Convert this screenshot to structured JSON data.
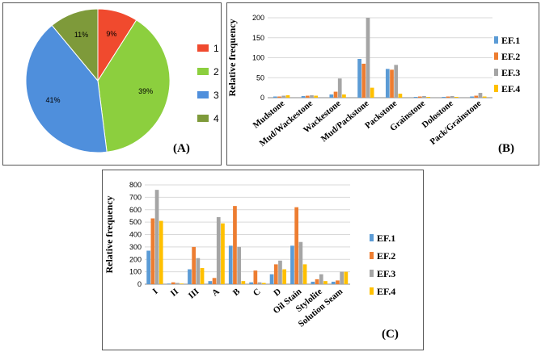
{
  "chart_data": [
    {
      "panel": "A",
      "type": "pie",
      "labels": [
        "1",
        "2",
        "3",
        "4"
      ],
      "values": [
        9,
        39,
        41,
        11
      ],
      "value_labels": [
        "9%",
        "39%",
        "41%",
        "11%"
      ],
      "colors": [
        "#f04a2e",
        "#8ccf3e",
        "#4f8fdc",
        "#7e9a3a"
      ],
      "tag": "(A)",
      "legend": "right"
    },
    {
      "panel": "B",
      "type": "bar",
      "categories": [
        "Mudstone",
        "Mud/Wackestone",
        "Wackestone",
        "Mud/Packstone",
        "Packstone",
        "Grainstone",
        "Dolostone",
        "Pack/Grainstone"
      ],
      "series": [
        {
          "name": "EF.1",
          "values": [
            3,
            4,
            8,
            97,
            72,
            2,
            2,
            3
          ]
        },
        {
          "name": "EF.2",
          "values": [
            3,
            5,
            15,
            85,
            70,
            3,
            3,
            5
          ]
        },
        {
          "name": "EF.3",
          "values": [
            5,
            6,
            48,
            200,
            82,
            4,
            4,
            12
          ]
        },
        {
          "name": "EF.4",
          "values": [
            6,
            5,
            8,
            25,
            10,
            2,
            2,
            3
          ]
        }
      ],
      "colors": [
        "#5b9bd5",
        "#ed7d31",
        "#a5a5a5",
        "#ffc000"
      ],
      "ylabel": "Relative  frequency",
      "ylim": [
        0,
        200
      ],
      "yticks": [
        0,
        50,
        100,
        150,
        200
      ],
      "grid": true,
      "legend": "right",
      "tag": "(B)"
    },
    {
      "panel": "C",
      "type": "bar",
      "categories": [
        "I",
        "II",
        "III",
        "A",
        "B",
        "C",
        "D",
        "Oil Stain",
        "Stylolite",
        "Solution Seam"
      ],
      "series": [
        {
          "name": "EF.1",
          "values": [
            270,
            5,
            120,
            25,
            310,
            15,
            80,
            310,
            20,
            20
          ]
        },
        {
          "name": "EF.2",
          "values": [
            530,
            15,
            300,
            50,
            630,
            110,
            160,
            620,
            40,
            30
          ]
        },
        {
          "name": "EF.3",
          "values": [
            760,
            10,
            210,
            540,
            300,
            15,
            190,
            340,
            80,
            100
          ]
        },
        {
          "name": "EF.4",
          "values": [
            510,
            5,
            130,
            490,
            25,
            10,
            120,
            160,
            25,
            100
          ]
        }
      ],
      "colors": [
        "#5b9bd5",
        "#ed7d31",
        "#a5a5a5",
        "#ffc000"
      ],
      "ylabel": "Relative  frequency",
      "ylim": [
        0,
        800
      ],
      "yticks": [
        0,
        100,
        200,
        300,
        400,
        500,
        600,
        700,
        800
      ],
      "grid": true,
      "legend": "right",
      "tag": "(C)"
    }
  ]
}
